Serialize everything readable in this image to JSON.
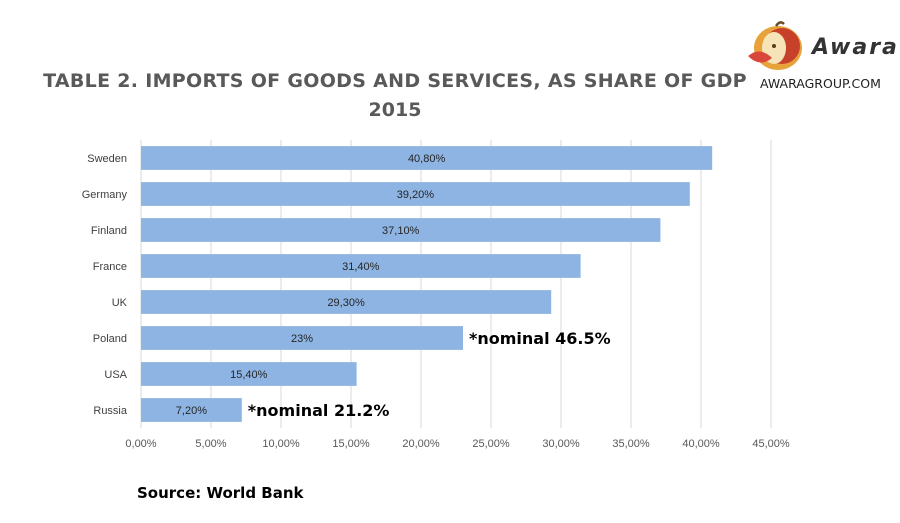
{
  "chart_data": {
    "type": "bar",
    "orientation": "horizontal",
    "title": "TABLE 2. IMPORTS OF GOODS AND SERVICES, AS SHARE OF GDP",
    "subtitle": "2015",
    "categories": [
      "Sweden",
      "Germany",
      "Finland",
      "France",
      "UK",
      "Poland",
      "USA",
      "Russia"
    ],
    "values": [
      40.8,
      39.2,
      37.1,
      31.4,
      29.3,
      23,
      15.4,
      7.2
    ],
    "data_labels": [
      "40,80%",
      "39,20%",
      "37,10%",
      "31,40%",
      "29,30%",
      "23%",
      "15,40%",
      "7,20%"
    ],
    "annotations": [
      {
        "category": "Poland",
        "text": "*nominal 46.5%"
      },
      {
        "category": "Russia",
        "text": "*nominal 21.2%"
      }
    ],
    "xlim": [
      0,
      45
    ],
    "xticks": [
      0,
      5,
      10,
      15,
      20,
      25,
      30,
      35,
      40,
      45
    ],
    "xtick_labels": [
      "0,00%",
      "5,00%",
      "10,00%",
      "15,00%",
      "20,00%",
      "25,00%",
      "30,00%",
      "35,00%",
      "40,00%",
      "45,00%"
    ],
    "grid": "vertical",
    "bar_color": "#8DB4E2",
    "grid_color": "#D9D9D9"
  },
  "source": "Source: World Bank",
  "logo": {
    "name": "Awara",
    "url": "AWARAGROUP.COM"
  }
}
